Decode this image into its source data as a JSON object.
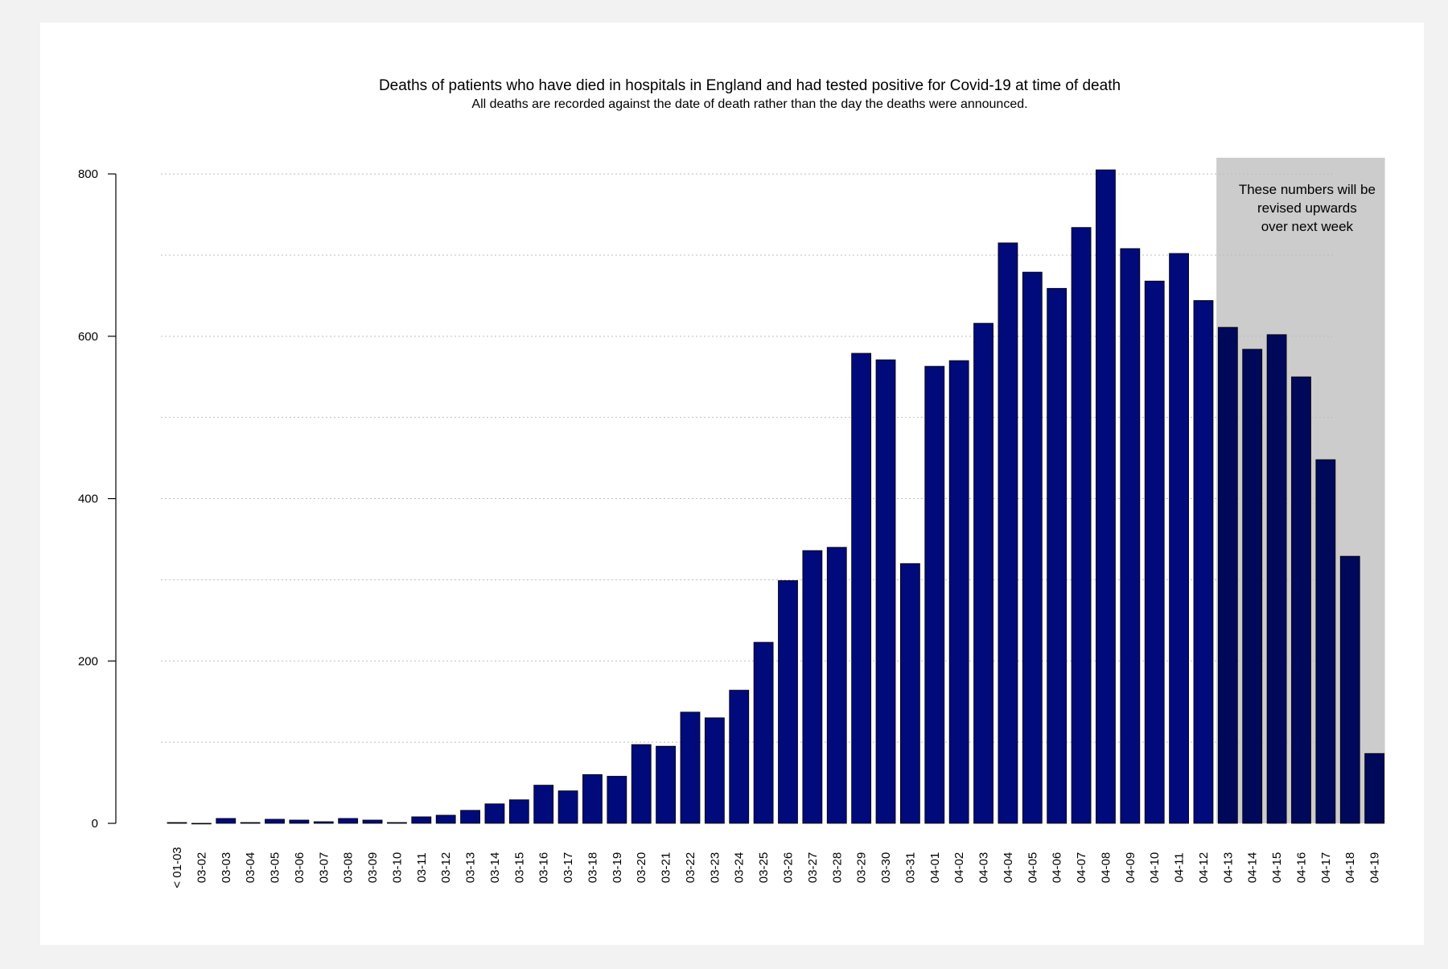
{
  "chart_data": {
    "type": "bar",
    "title": "Deaths of patients who have died in hospitals in England and had tested positive for Covid-19 at time of death",
    "subtitle": "All deaths are recorded against the date of death rather than the day the deaths were announced.",
    "xlabel": "",
    "ylabel": "",
    "ylim": [
      0,
      810
    ],
    "yticks": [
      0,
      200,
      400,
      600,
      800
    ],
    "grid": "horizontal-dotted",
    "categories": [
      "< 01-03",
      "03-02",
      "03-03",
      "03-04",
      "03-05",
      "03-06",
      "03-07",
      "03-08",
      "03-09",
      "03-10",
      "03-11",
      "03-12",
      "03-13",
      "03-14",
      "03-15",
      "03-16",
      "03-17",
      "03-18",
      "03-19",
      "03-20",
      "03-21",
      "03-22",
      "03-23",
      "03-24",
      "03-25",
      "03-26",
      "03-27",
      "03-28",
      "03-29",
      "03-30",
      "03-31",
      "04-01",
      "04-02",
      "04-03",
      "04-04",
      "04-05",
      "04-06",
      "04-07",
      "04-08",
      "04-09",
      "04-10",
      "04-11",
      "04-12",
      "04-13",
      "04-14",
      "04-15",
      "04-16",
      "04-17",
      "04-18",
      "04-19"
    ],
    "values": [
      1,
      0,
      6,
      1,
      5,
      4,
      2,
      6,
      4,
      1,
      8,
      10,
      16,
      24,
      29,
      47,
      40,
      60,
      58,
      97,
      95,
      137,
      130,
      164,
      223,
      299,
      336,
      340,
      579,
      571,
      320,
      563,
      570,
      616,
      715,
      679,
      659,
      734,
      805,
      708,
      668,
      702,
      644,
      611,
      584,
      602,
      550,
      448,
      329,
      86
    ],
    "bar_color": "#000a7a",
    "bar_color_shaded": "#00085a",
    "shaded_region": {
      "from_category": "04-13",
      "to_category": "04-19",
      "color": "#cccccc",
      "note_lines": [
        "These numbers will be",
        "revised upwards",
        "over next week"
      ]
    }
  }
}
